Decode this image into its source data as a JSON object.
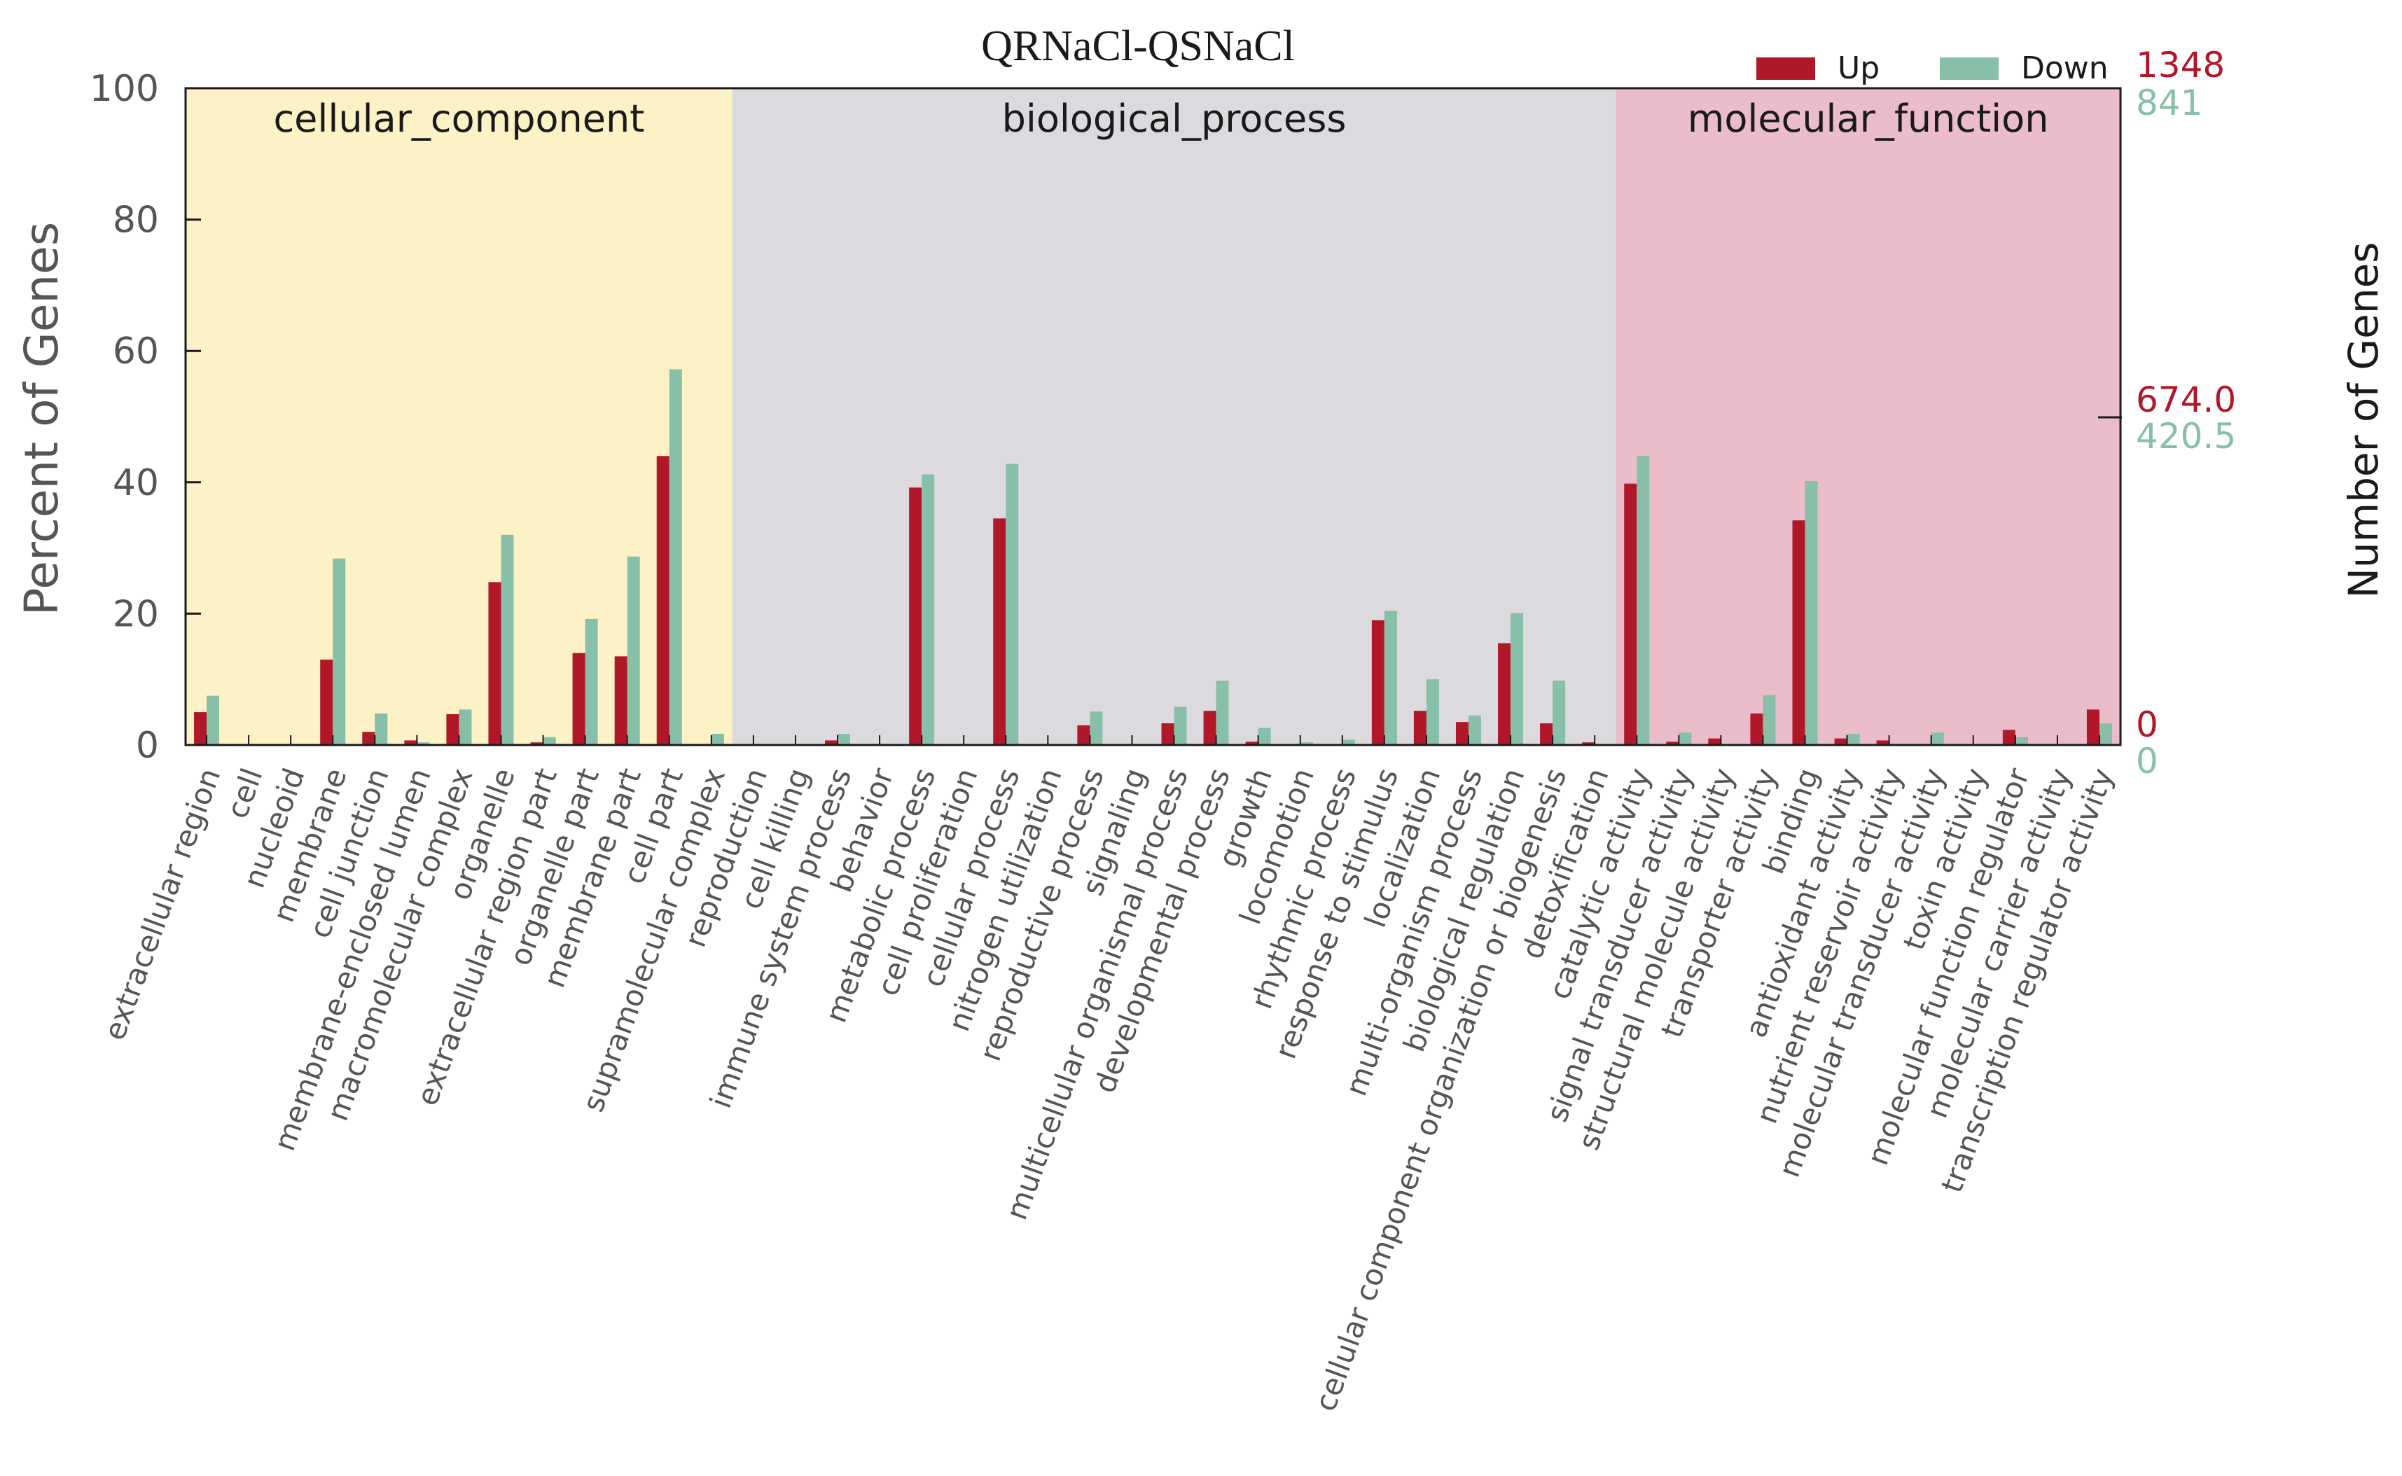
{
  "chart_data": {
    "type": "bar",
    "title": "QRNaCl-QSNaCl",
    "ylabel": "Percent of Genes",
    "ylabel_right": "Number of Genes",
    "ylim": [
      0,
      100
    ],
    "yticks": [
      0,
      20,
      40,
      60,
      80,
      100
    ],
    "legend": {
      "placement": "top-right",
      "up_label": "Up",
      "down_label": "Down"
    },
    "right_axis": {
      "up": {
        "max": "1348",
        "mid": "674.0",
        "zero": "0"
      },
      "down": {
        "max": "841",
        "mid": "420.5",
        "zero": "0"
      }
    },
    "colors": {
      "up": "#b0182a",
      "down": "#88bfa8",
      "cellular_component": "#fdf1c6",
      "biological_process": "#dcdadf",
      "molecular_function": "#ebbdca",
      "up_text": "#b0182a",
      "down_text": "#88bfa8"
    },
    "groups": [
      {
        "name": "cellular_component",
        "start": 0,
        "end": 13
      },
      {
        "name": "biological_process",
        "start": 13,
        "end": 34
      },
      {
        "name": "molecular_function",
        "start": 34,
        "end": 46
      }
    ],
    "categories": [
      "extracellular region",
      "cell",
      "nucleoid",
      "membrane",
      "cell junction",
      "membrane-enclosed lumen",
      "macromolecular complex",
      "organelle",
      "extracellular region part",
      "organelle part",
      "membrane part",
      "cell part",
      "supramolecular complex",
      "reproduction",
      "cell killing",
      "immune system process",
      "behavior",
      "metabolic process",
      "cell proliferation",
      "cellular process",
      "nitrogen utilization",
      "reproductive process",
      "signaling",
      "multicellular organismal process",
      "developmental process",
      "growth",
      "locomotion",
      "rhythmic process",
      "response to stimulus",
      "localization",
      "multi-organism process",
      "biological regulation",
      "cellular component organization or biogenesis",
      "detoxification",
      "catalytic activity",
      "signal transducer activity",
      "structural molecule activity",
      "transporter activity",
      "binding",
      "antioxidant activity",
      "nutrient reservoir activity",
      "molecular transducer activity",
      "toxin activity",
      "molecular function regulator",
      "molecular carrier activity",
      "transcription regulator activity"
    ],
    "series": [
      {
        "name": "Up",
        "values": [
          5,
          0.1,
          0.1,
          13,
          2,
          0.7,
          4.7,
          24.8,
          0.4,
          14,
          13.5,
          44,
          0.1,
          0.1,
          0.1,
          0.7,
          0.1,
          39.2,
          0.1,
          34.5,
          0.1,
          3,
          0.1,
          3.3,
          5.2,
          0.5,
          0.1,
          0.1,
          19,
          5.2,
          3.5,
          15.5,
          3.3,
          0.4,
          39.8,
          0.5,
          1,
          4.8,
          34.2,
          1,
          0.7,
          0.1,
          0.1,
          2.3,
          0.1,
          5.4
        ]
      },
      {
        "name": "Down",
        "values": [
          7.5,
          0.1,
          0.1,
          28.4,
          4.8,
          0.4,
          5.4,
          32,
          1.2,
          19.2,
          28.7,
          57.2,
          1.7,
          0.1,
          0.1,
          1.7,
          0.1,
          41.2,
          0.1,
          42.8,
          0.1,
          5.1,
          0.1,
          5.8,
          9.8,
          2.6,
          0.4,
          0.8,
          20.4,
          10,
          4.5,
          20.1,
          9.8,
          0.1,
          44,
          1.9,
          0.1,
          7.6,
          40.2,
          1.7,
          0.1,
          1.9,
          0.1,
          1.2,
          0.1,
          3.3
        ]
      }
    ]
  }
}
